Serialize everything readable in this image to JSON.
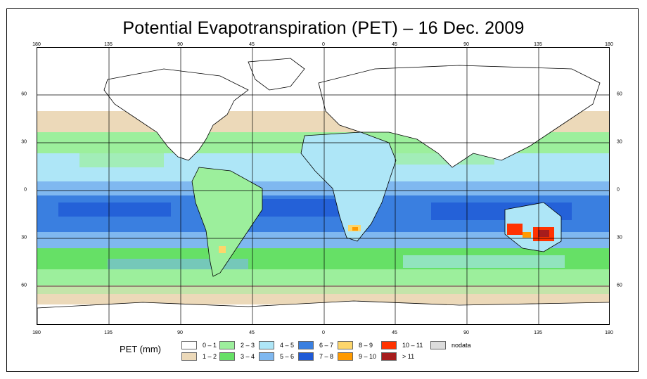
{
  "title": "Potential Evapotranspiration (PET) – 16 Dec. 2009",
  "map": {
    "projection": "equirectangular",
    "lon_range": [
      -180,
      180
    ],
    "lat_range": [
      -90,
      90
    ],
    "variable": "PET (mm)",
    "date": "16 Dec. 2009"
  },
  "axes": {
    "top_ticks": [
      "180",
      "135",
      "90",
      "45",
      "0",
      "45",
      "90",
      "135",
      "180"
    ],
    "bottom_ticks": [
      "180",
      "135",
      "90",
      "45",
      "0",
      "45",
      "90",
      "135",
      "180"
    ],
    "left_ticks": [
      "60",
      "30",
      "0",
      "30",
      "60"
    ],
    "right_ticks": [
      "60",
      "30",
      "0",
      "30",
      "60"
    ]
  },
  "legend": {
    "label": "PET (mm)",
    "items": [
      {
        "label": "0 – 1",
        "color": "#ffffff"
      },
      {
        "label": "1 – 2",
        "color": "#ecd9b9"
      },
      {
        "label": "2 – 3",
        "color": "#9cef9c"
      },
      {
        "label": "3 – 4",
        "color": "#66e066"
      },
      {
        "label": "4 – 5",
        "color": "#aee6f7"
      },
      {
        "label": "5 – 6",
        "color": "#7fb8f0"
      },
      {
        "label": "6 – 7",
        "color": "#3a7fe0"
      },
      {
        "label": "7 – 8",
        "color": "#1f5ad6"
      },
      {
        "label": "8 – 9",
        "color": "#fdd66b"
      },
      {
        "label": "9 – 10",
        "color": "#ff9a00"
      },
      {
        "label": "10 – 11",
        "color": "#ff3300"
      },
      {
        "label": "> 11",
        "color": "#a61c1c"
      },
      {
        "label": "nodata",
        "color": "#dcdcdc"
      }
    ]
  }
}
